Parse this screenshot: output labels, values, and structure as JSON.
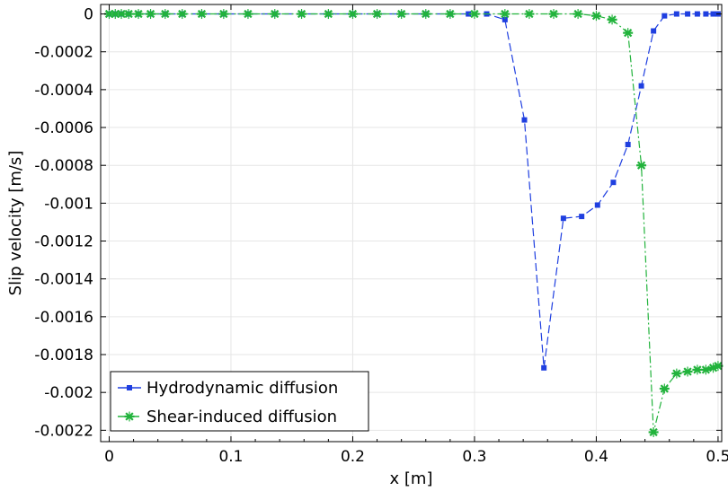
{
  "chart_data": {
    "type": "line",
    "xlabel": "x [m]",
    "ylabel": "Slip velocity [m/s]",
    "xlim": [
      -0.007,
      0.503
    ],
    "ylim": [
      -0.00226,
      5e-05
    ],
    "grid": true,
    "legend_position": "bottom-left",
    "x_ticks": [
      0,
      0.1,
      0.2,
      0.3,
      0.4,
      0.5
    ],
    "x_tick_labels": [
      "0",
      "0.1",
      "0.2",
      "0.3",
      "0.4",
      "0.5"
    ],
    "y_ticks": [
      0,
      -0.0002,
      -0.0004,
      -0.0006,
      -0.0008,
      -0.001,
      -0.0012,
      -0.0014,
      -0.0016,
      -0.0018,
      -0.002,
      -0.0022
    ],
    "y_tick_labels": [
      "0",
      "-0.0002",
      "-0.0004",
      "-0.0006",
      "-0.0008",
      "-0.001",
      "-0.0012",
      "-0.0014",
      "-0.0016",
      "-0.0018",
      "-0.002",
      "-0.0022"
    ],
    "series": [
      {
        "name": "Hydrodynamic diffusion",
        "color": "#1f3fe0",
        "line_style": "dashed",
        "marker": "square",
        "x": [
          0,
          0.005,
          0.01,
          0.016,
          0.024,
          0.034,
          0.046,
          0.06,
          0.076,
          0.094,
          0.114,
          0.136,
          0.158,
          0.18,
          0.2,
          0.22,
          0.24,
          0.26,
          0.28,
          0.295,
          0.31,
          0.325,
          0.341,
          0.357,
          0.373,
          0.388,
          0.401,
          0.414,
          0.426,
          0.437,
          0.447,
          0.456,
          0.466,
          0.475,
          0.483,
          0.49,
          0.496,
          0.5
        ],
        "values": [
          0,
          0,
          0,
          0,
          0,
          0,
          0,
          0,
          0,
          0,
          0,
          0,
          0,
          0,
          0,
          0,
          0,
          0,
          0,
          0,
          0,
          -3e-05,
          -0.00056,
          -0.00187,
          -0.00108,
          -0.00107,
          -0.00101,
          -0.00089,
          -0.00069,
          -0.00038,
          -9e-05,
          -1e-05,
          0,
          0,
          0,
          0,
          0,
          0
        ]
      },
      {
        "name": "Shear-induced diffusion",
        "color": "#22b33c",
        "line_style": "dash-dot",
        "marker": "asterisk",
        "x": [
          0,
          0.005,
          0.01,
          0.016,
          0.024,
          0.034,
          0.046,
          0.06,
          0.076,
          0.094,
          0.114,
          0.136,
          0.158,
          0.18,
          0.2,
          0.22,
          0.24,
          0.26,
          0.28,
          0.3,
          0.325,
          0.345,
          0.365,
          0.385,
          0.4,
          0.413,
          0.426,
          0.437,
          0.447,
          0.456,
          0.466,
          0.475,
          0.483,
          0.49,
          0.496,
          0.5
        ],
        "values": [
          0,
          0,
          0,
          0,
          0,
          0,
          0,
          0,
          0,
          0,
          0,
          0,
          0,
          0,
          0,
          0,
          0,
          0,
          0,
          0,
          0,
          0,
          0,
          0,
          -1e-05,
          -3e-05,
          -0.0001,
          -0.0008,
          -0.00221,
          -0.00198,
          -0.0019,
          -0.00189,
          -0.00188,
          -0.00188,
          -0.00187,
          -0.00186
        ]
      }
    ]
  }
}
